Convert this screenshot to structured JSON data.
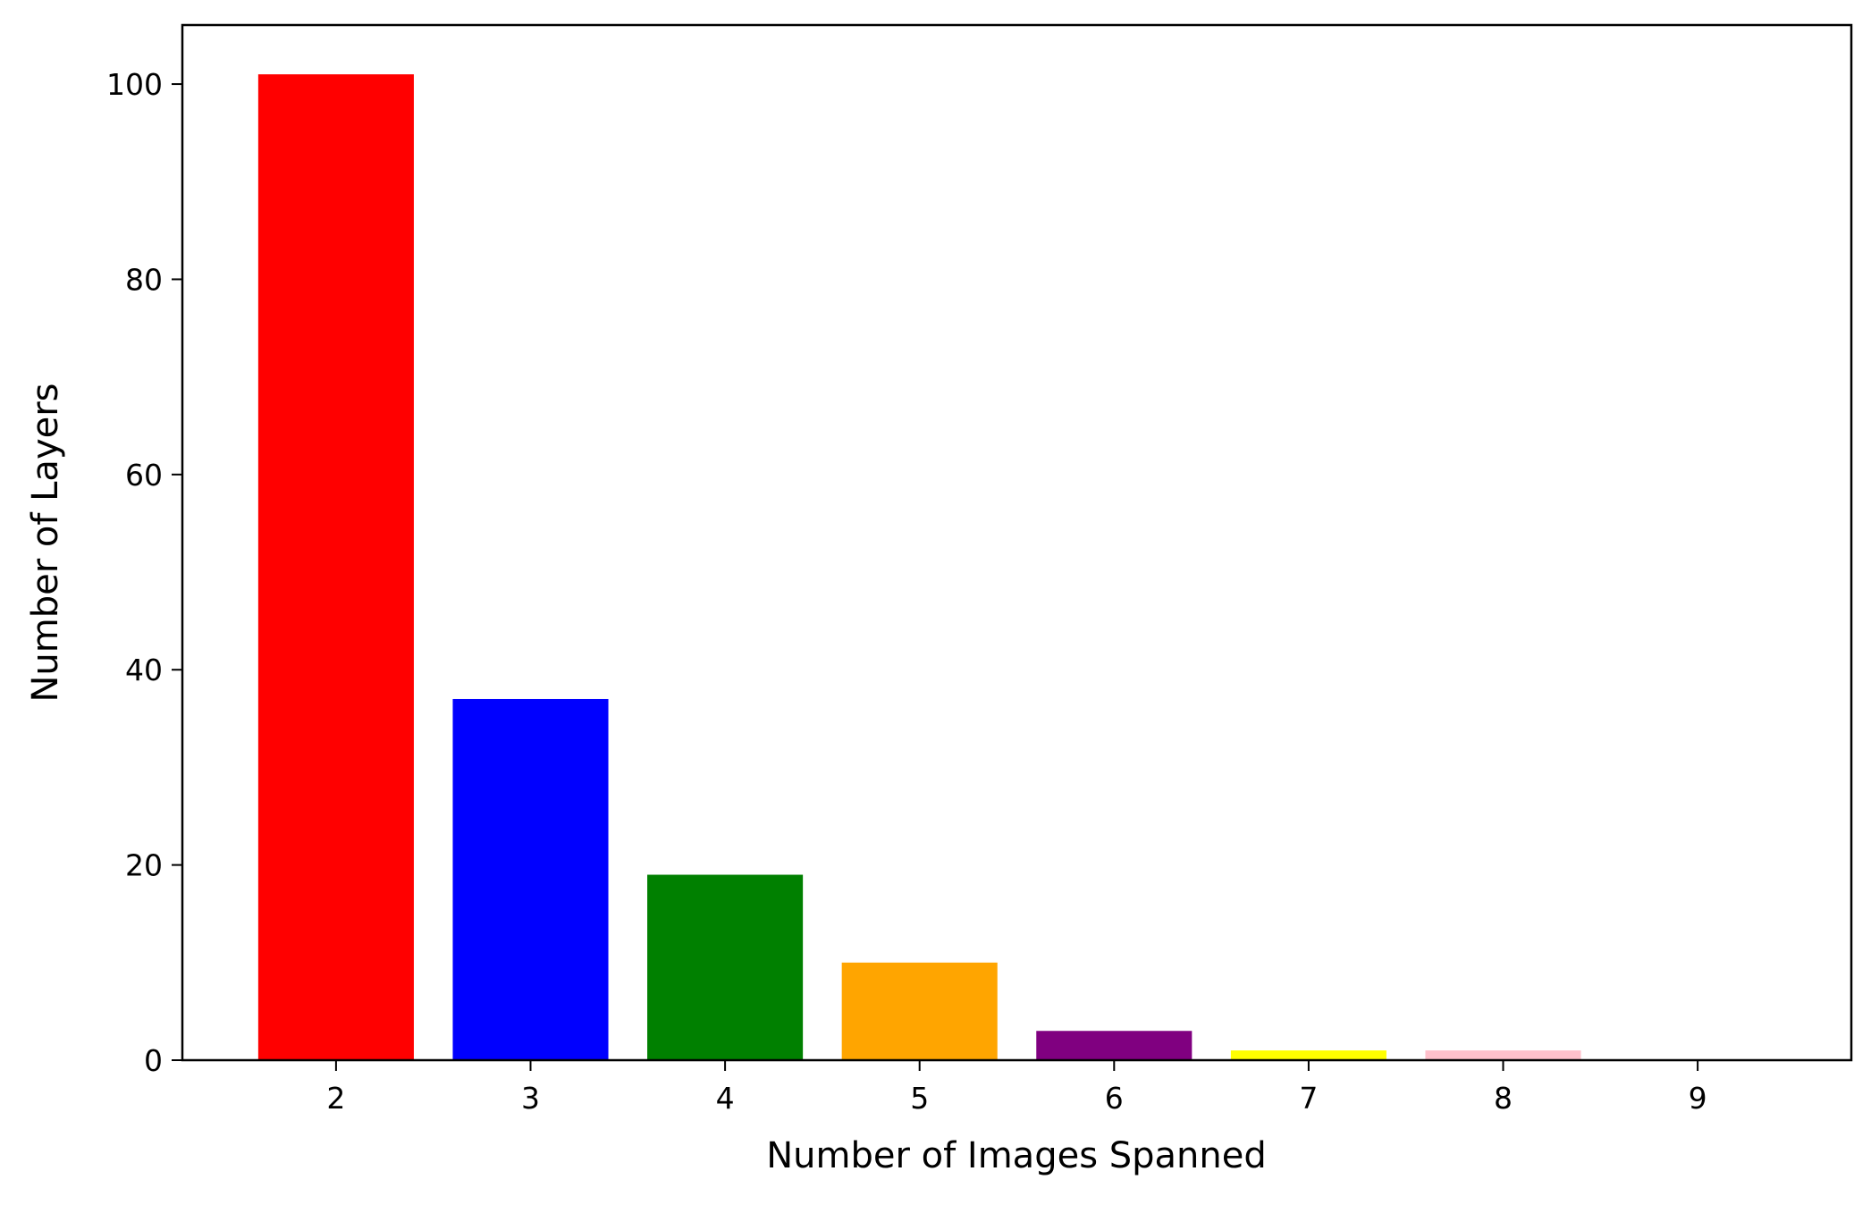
{
  "chart_data": {
    "type": "bar",
    "title": "",
    "xlabel": "Number of Images Spanned",
    "ylabel": "Number of Layers",
    "categories": [
      "2",
      "3",
      "4",
      "5",
      "6",
      "7",
      "8",
      "9"
    ],
    "values": [
      101,
      37,
      19,
      10,
      3,
      1,
      1,
      0
    ],
    "colors": [
      "#ff0000",
      "#0000ff",
      "#008000",
      "#ffa500",
      "#800080",
      "#ffff00",
      "#ffc0cb",
      "#a52a2a"
    ],
    "x_ticks": [
      "2",
      "3",
      "4",
      "5",
      "6",
      "7",
      "8",
      "9"
    ],
    "y_ticks": [
      0,
      20,
      40,
      60,
      80,
      100
    ],
    "ylim": [
      0,
      106.05
    ],
    "grid": false,
    "legend": "none"
  }
}
